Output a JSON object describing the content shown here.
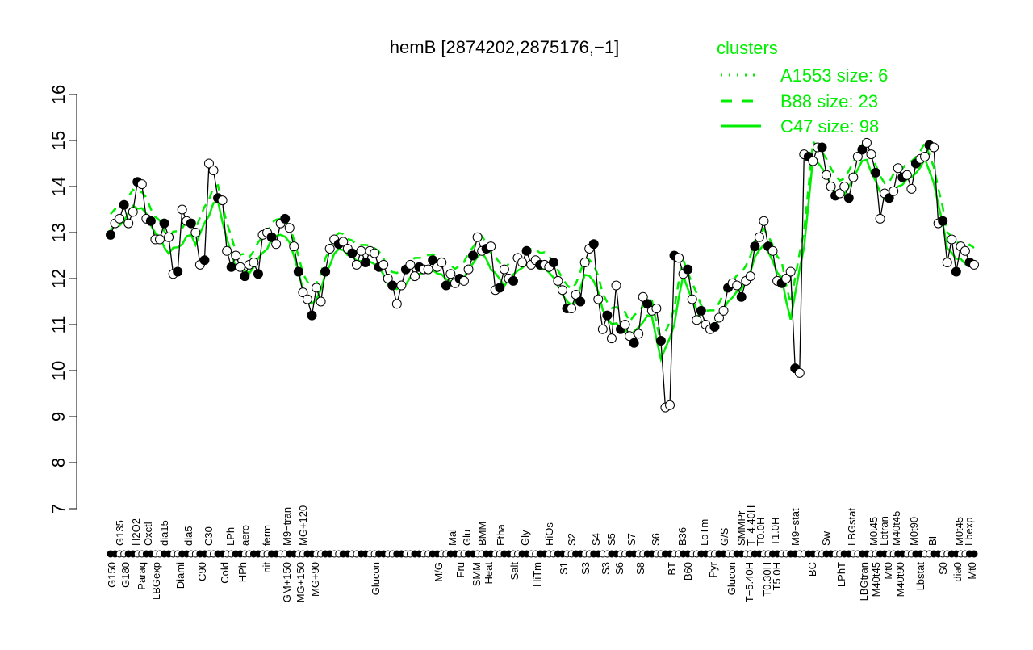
{
  "chart_data": {
    "type": "line",
    "title": "hemB [2874202,2875176,−1]",
    "xlabel": "",
    "ylabel": "",
    "ylim": [
      7,
      16
    ],
    "yticks": [
      "7",
      "8",
      "9",
      "10",
      "11",
      "12",
      "13",
      "14",
      "15",
      "16"
    ],
    "grid": false,
    "legend": {
      "title": "clusters",
      "placement": "top-right",
      "color": "#00ee00",
      "entries": [
        {
          "label": "A1553 size: 6",
          "style": "dotted"
        },
        {
          "label": "B88 size: 23",
          "style": "dashed"
        },
        {
          "label": "C47 size: 98",
          "style": "solid"
        }
      ]
    },
    "x_labels_upper": [
      "G135",
      "H2O2",
      "Oxctl",
      "dia15",
      "dia5",
      "C30",
      "LPh",
      "aero",
      "ferm",
      "M9−tran",
      "MG+120",
      "Mal",
      "Glu",
      "BMM",
      "Etha",
      "Gly",
      "HiOs",
      "S2",
      "S4",
      "S5",
      "S7",
      "S6",
      "B36",
      "LoTm",
      "G/S",
      "SMMPr",
      "T−4.40H",
      "T0.0H",
      "T1.0H",
      "M9−stat",
      "Sw",
      "LBGstat",
      "M0t45",
      "Lbtran",
      "M40t45",
      "M0t90",
      "BI",
      "M0t45",
      "Lbexp"
    ],
    "x_labels_lower": [
      "G150",
      "G180",
      "Paraq",
      "LBGexp",
      "Diami",
      "C90",
      "Cold",
      "HPh",
      "nit",
      "GM+150",
      "MG+150",
      "MG+90",
      "Glucon",
      "M/G",
      "Fru",
      "SMM",
      "Heat",
      "Salt",
      "HiTm",
      "S1",
      "S3",
      "S3",
      "S6",
      "S8",
      "BT",
      "B60",
      "Pyr",
      "Glucon",
      "T−5.40H",
      "T0.30H",
      "T5.0H",
      "BC",
      "LPhT",
      "LBGtran",
      "M40t45",
      "Mt0",
      "M40t90",
      "Lbstat",
      "S0",
      "dia0",
      "Mt0"
    ],
    "series": [
      {
        "values": [
          12.95,
          13.2,
          13.3,
          13.6,
          13.2,
          13.45,
          14.1,
          14.05,
          13.3,
          13.25,
          12.85,
          12.85,
          13.2,
          12.9,
          12.1,
          12.15,
          13.5,
          13.25,
          13.2,
          13.0,
          12.3,
          12.4,
          14.5,
          14.35,
          13.75,
          13.7,
          12.6,
          12.25,
          12.5,
          12.25,
          12.05,
          12.3,
          12.35,
          12.1,
          12.95,
          13.0,
          12.9,
          12.75,
          13.2,
          13.3,
          13.1,
          12.7,
          12.15,
          11.7,
          11.55,
          11.2,
          11.8,
          11.5,
          12.15,
          12.65,
          12.85,
          12.75,
          12.8,
          12.65,
          12.55,
          12.3,
          12.6,
          12.35,
          12.6,
          12.55,
          12.25,
          12.3,
          12.0,
          11.85,
          11.45,
          11.85,
          12.2,
          12.3,
          12.05,
          12.25,
          12.2,
          12.2,
          12.4,
          12.25,
          12.35,
          11.85,
          12.1,
          11.9,
          12.0,
          11.95,
          12.2,
          12.5,
          12.9,
          12.6,
          12.65,
          12.7,
          11.75,
          11.8,
          12.2,
          12.0,
          11.95,
          12.45,
          12.35,
          12.6,
          12.3,
          12.4,
          12.3,
          12.3,
          12.25,
          12.35,
          11.95,
          11.75,
          11.35,
          11.35,
          11.65,
          11.5,
          12.35,
          12.65,
          12.75,
          11.55,
          10.9,
          11.2,
          10.7,
          11.85,
          10.9,
          11.0,
          10.75,
          10.6,
          10.8,
          11.6,
          11.45,
          11.3,
          11.35,
          10.65,
          9.2,
          9.25,
          12.5,
          12.45,
          12.1,
          12.2,
          11.55,
          11.1,
          11.3,
          11.0,
          10.9,
          10.95,
          11.15,
          11.3,
          11.8,
          11.9,
          11.85,
          11.6,
          11.95,
          12.05,
          12.7,
          12.9,
          13.25,
          12.7,
          12.6,
          11.95,
          11.9,
          12.0,
          12.15,
          10.05,
          9.95,
          14.7,
          14.65,
          14.55,
          14.85,
          14.85,
          14.25,
          14.0,
          13.8,
          13.85,
          14.0,
          13.75,
          14.2,
          14.65,
          14.8,
          14.95,
          14.7,
          14.3,
          13.3,
          13.85,
          13.75,
          13.9,
          14.4,
          14.2,
          14.25,
          13.95,
          14.5,
          14.6,
          14.65,
          14.9,
          14.85,
          13.2,
          13.25,
          12.35,
          12.85,
          12.15,
          12.7,
          12.6,
          12.35,
          12.3
        ]
      }
    ]
  }
}
